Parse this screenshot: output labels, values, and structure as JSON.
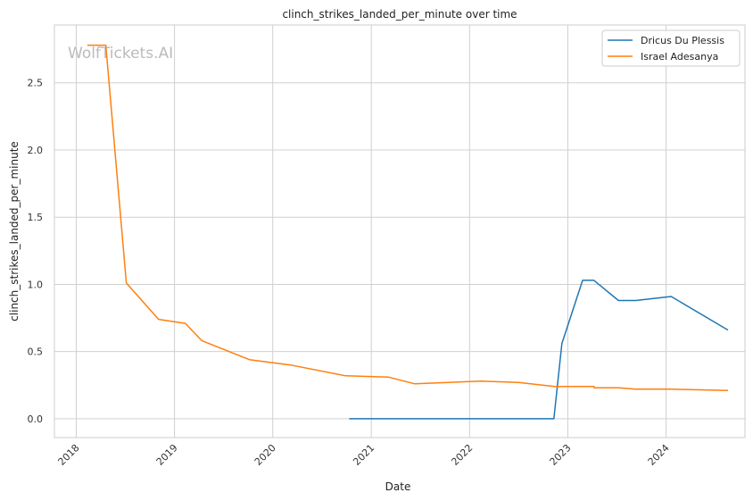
{
  "chart_data": {
    "type": "line",
    "title": "clinch_strikes_landed_per_minute over time",
    "xlabel": "Date",
    "ylabel": "clinch_strikes_landed_per_minute",
    "watermark": "WolfTickets.AI",
    "grid": true,
    "legend_position": "top-right",
    "xlim": [
      "2017-10-12",
      "2024-10-20"
    ],
    "ylim": [
      -0.14,
      2.93
    ],
    "x_ticks": [
      "2018-01-01",
      "2019-01-01",
      "2020-01-01",
      "2021-01-01",
      "2022-01-01",
      "2023-01-01",
      "2024-01-01"
    ],
    "x_tick_labels": [
      "2018",
      "2019",
      "2020",
      "2021",
      "2022",
      "2023",
      "2024"
    ],
    "y_ticks": [
      0.0,
      0.5,
      1.0,
      1.5,
      2.0,
      2.5
    ],
    "y_tick_labels": [
      "0.0",
      "0.5",
      "1.0",
      "1.5",
      "2.0",
      "2.5"
    ],
    "series": [
      {
        "name": "Dricus Du Plessis",
        "color": "#1f77b4",
        "points": [
          {
            "x": "2020-10-11",
            "y": 0.0
          },
          {
            "x": "2022-11-10",
            "y": 0.0
          },
          {
            "x": "2022-12-10",
            "y": 0.56
          },
          {
            "x": "2023-02-25",
            "y": 1.03
          },
          {
            "x": "2023-04-08",
            "y": 1.03
          },
          {
            "x": "2023-07-08",
            "y": 0.88
          },
          {
            "x": "2023-09-10",
            "y": 0.88
          },
          {
            "x": "2024-01-20",
            "y": 0.91
          },
          {
            "x": "2024-08-18",
            "y": 0.66
          }
        ]
      },
      {
        "name": "Israel Adesanya",
        "color": "#ff7f0e",
        "points": [
          {
            "x": "2018-02-11",
            "y": 2.78
          },
          {
            "x": "2018-04-21",
            "y": 2.78
          },
          {
            "x": "2018-07-06",
            "y": 1.01
          },
          {
            "x": "2018-11-03",
            "y": 0.74
          },
          {
            "x": "2019-02-10",
            "y": 0.71
          },
          {
            "x": "2019-04-13",
            "y": 0.58
          },
          {
            "x": "2019-10-06",
            "y": 0.44
          },
          {
            "x": "2020-03-07",
            "y": 0.4
          },
          {
            "x": "2020-09-27",
            "y": 0.32
          },
          {
            "x": "2021-03-06",
            "y": 0.31
          },
          {
            "x": "2021-06-12",
            "y": 0.26
          },
          {
            "x": "2022-02-12",
            "y": 0.28
          },
          {
            "x": "2022-07-02",
            "y": 0.27
          },
          {
            "x": "2022-11-12",
            "y": 0.24
          },
          {
            "x": "2023-04-08",
            "y": 0.24
          },
          {
            "x": "2023-04-09",
            "y": 0.23
          },
          {
            "x": "2023-07-08",
            "y": 0.23
          },
          {
            "x": "2023-09-10",
            "y": 0.22
          },
          {
            "x": "2024-01-20",
            "y": 0.22
          },
          {
            "x": "2024-08-18",
            "y": 0.21
          }
        ]
      }
    ]
  }
}
